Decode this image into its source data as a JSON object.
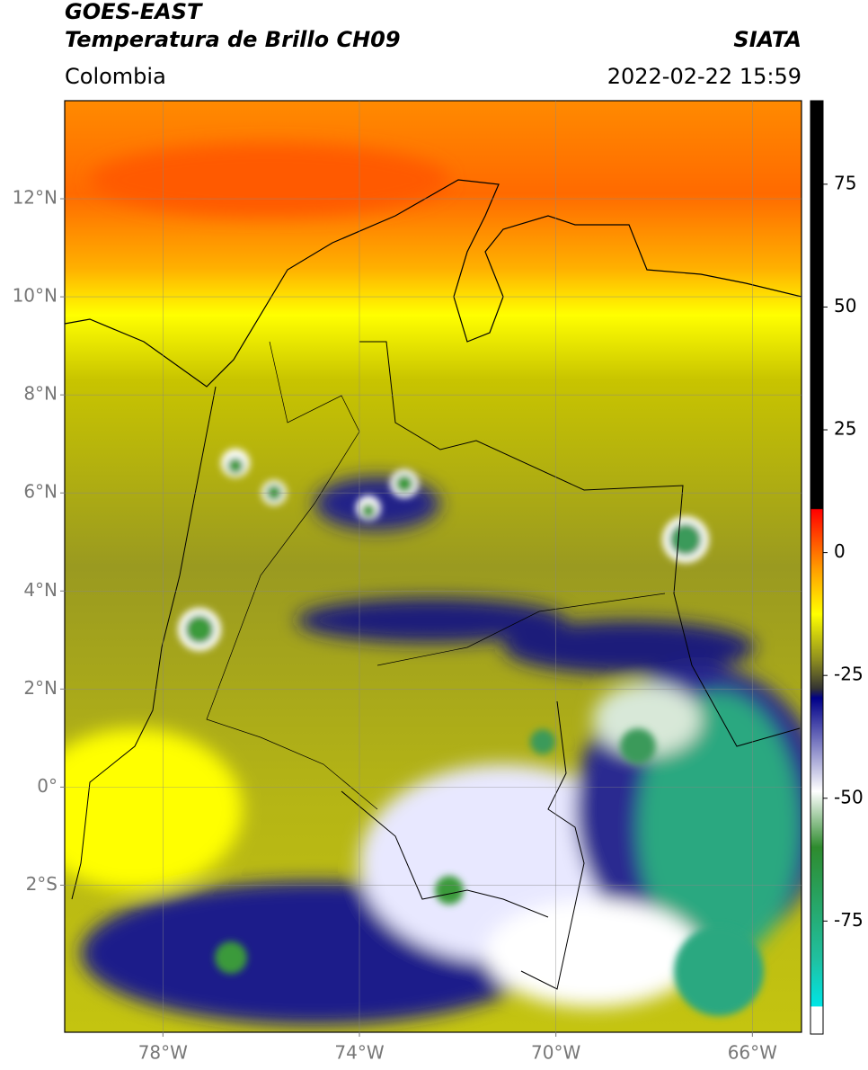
{
  "header": {
    "title": "GOES-EAST",
    "subtitle": "Temperatura de Brillo CH09",
    "source": "SIATA",
    "region": "Colombia",
    "datetime": "2022-02-22 15:59"
  },
  "map": {
    "xlim": [
      -80,
      -65
    ],
    "ylim": [
      -5,
      14
    ],
    "xticks": [
      {
        "value": -78,
        "label": "78°W"
      },
      {
        "value": -74,
        "label": "74°W"
      },
      {
        "value": -70,
        "label": "70°W"
      },
      {
        "value": -66,
        "label": "66°W"
      }
    ],
    "yticks": [
      {
        "value": 12,
        "label": "12°N"
      },
      {
        "value": 10,
        "label": "10°N"
      },
      {
        "value": 8,
        "label": "8°N"
      },
      {
        "value": 6,
        "label": "6°N"
      },
      {
        "value": 4,
        "label": "4°N"
      },
      {
        "value": 2,
        "label": "2°N"
      },
      {
        "value": 0,
        "label": "0°"
      },
      {
        "value": -2,
        "label": "2°S"
      }
    ]
  },
  "colorbar": {
    "lim": [
      -98,
      92
    ],
    "ticks": [
      75,
      50,
      25,
      0,
      -25,
      -50,
      -75
    ]
  }
}
